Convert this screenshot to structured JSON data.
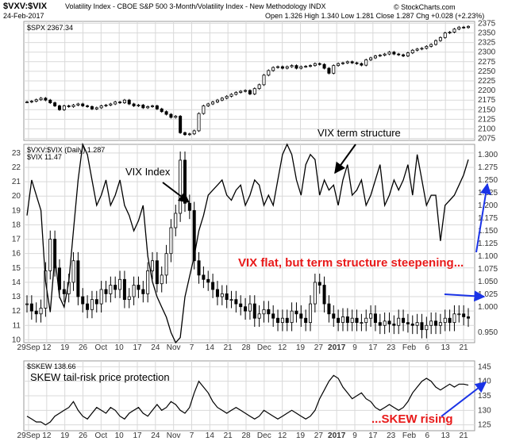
{
  "header": {
    "symbol": "$VXV:$VIX",
    "description": "Volatility Index - CBOE S&P 500 3-Month/Volatility Index - New Methodology  INDX",
    "date": "24-Feb-2017",
    "quote": "Open 1.326  High 1.340  Low 1.281  Close 1.287  Chg +0.028 (+2.23%)",
    "watermark": "© StockCharts.com"
  },
  "panels": {
    "spx": {
      "legend": "$SPX 2367.34"
    },
    "main": {
      "legend_ratio": "$VXV:$VIX (Daily) 1.287",
      "legend_vix": "$VIX 11.47"
    },
    "skew": {
      "legend": "$SKEW 138.66"
    }
  },
  "annotations": {
    "vix_index": "VIX Index",
    "term_structure": "VIX term structure",
    "flat_steepening": "VIX flat, but term structure steepening...",
    "skew_label": "SKEW tail-risk price protection",
    "skew_rising": "...SKEW rising"
  },
  "colors": {
    "annotation_red": "#e81a1a",
    "arrow_blue": "#1a33e6",
    "series": "#000000",
    "grid": "#d9d9d9"
  },
  "chart_data": [
    {
      "type": "candlestick",
      "series": [
        {
          "name": "$SPX",
          "values": [
            2170,
            2172,
            2176,
            2180,
            2175,
            2168,
            2160,
            2150,
            2160,
            2158,
            2162,
            2165,
            2160,
            2158,
            2152,
            2155,
            2160,
            2162,
            2165,
            2170,
            2168,
            2175,
            2165,
            2160,
            2162,
            2155,
            2158,
            2160,
            2152,
            2145,
            2138,
            2130,
            2133,
            2090,
            2085,
            2087,
            2095,
            2140,
            2160,
            2165,
            2170,
            2175,
            2180,
            2185,
            2190,
            2195,
            2198,
            2200,
            2191,
            2205,
            2215,
            2240,
            2252,
            2260,
            2262,
            2258,
            2262,
            2265,
            2258,
            2262,
            2263,
            2265,
            2270,
            2268,
            2258,
            2245,
            2265,
            2270,
            2272,
            2275,
            2272,
            2270,
            2266,
            2280,
            2285,
            2290,
            2292,
            2295,
            2300,
            2295,
            2293,
            2290,
            2298,
            2305,
            2308,
            2310,
            2315,
            2320,
            2330,
            2338,
            2350,
            2352,
            2360,
            2365,
            2364,
            2367
          ]
        }
      ],
      "y_ticks": [
        2075,
        2100,
        2125,
        2150,
        2175,
        2200,
        2225,
        2250,
        2275,
        2300,
        2325,
        2350,
        2375
      ],
      "ylim": [
        2070,
        2380
      ]
    },
    {
      "type": "line",
      "series": [
        {
          "name": "$VIX",
          "values": [
            12.5,
            12.0,
            11.8,
            12.2,
            14.8,
            17.0,
            15.0,
            13.5,
            13.2,
            14.0,
            15.5,
            13.0,
            12.5,
            12.1,
            12.8,
            12.5,
            13.5,
            13.2,
            13.8,
            13.5,
            14.2,
            12.8,
            13.0,
            13.8,
            13.5,
            13.2,
            14.8,
            15.5,
            13.9,
            14.5,
            16.0,
            17.8,
            18.8,
            22.5,
            19.5,
            19.0,
            15.5,
            14.5,
            14.2,
            14.0,
            13.5,
            13.0,
            13.2,
            12.8,
            12.8,
            12.5,
            12.3,
            12.0,
            12.5,
            11.5,
            11.8,
            12.1,
            11.8,
            11.5,
            11.2,
            11.5,
            11.2,
            12.0,
            11.8,
            11.5,
            11.2,
            12.5,
            14.0,
            13.8,
            12.5,
            11.8,
            11.5,
            11.2,
            11.6,
            11.2,
            11.5,
            11.2,
            11.2,
            11.5,
            11.8,
            11.2,
            11.0,
            11.3,
            11.1,
            11.0,
            11.5,
            11.2,
            11.1,
            11.0,
            11.2,
            10.7,
            11.0,
            11.3,
            11.0,
            11.2,
            11.5,
            11.2,
            11.8,
            11.8,
            11.6,
            11.5
          ]
        },
        {
          "name": "$VXV:$VIX (Daily)",
          "values": [
            1.18,
            1.25,
            1.22,
            1.19,
            1.05,
            0.99,
            1.1,
            1.02,
            1.0,
            1.05,
            1.15,
            1.25,
            1.32,
            1.3,
            1.25,
            1.2,
            1.22,
            1.25,
            1.2,
            1.22,
            1.25,
            1.2,
            1.18,
            1.15,
            1.17,
            1.2,
            1.1,
            1.05,
            1.02,
            1.0,
            0.98,
            0.95,
            0.93,
            0.94,
            1.02,
            1.06,
            1.1,
            1.15,
            1.18,
            1.22,
            1.23,
            1.24,
            1.25,
            1.22,
            1.21,
            1.23,
            1.24,
            1.2,
            1.22,
            1.25,
            1.24,
            1.2,
            1.22,
            1.2,
            1.25,
            1.3,
            1.32,
            1.3,
            1.25,
            1.22,
            1.28,
            1.3,
            1.29,
            1.22,
            1.25,
            1.23,
            1.24,
            1.2,
            1.25,
            1.28,
            1.22,
            1.23,
            1.25,
            1.2,
            1.22,
            1.25,
            1.28,
            1.2,
            1.22,
            1.25,
            1.23,
            1.25,
            1.28,
            1.22,
            1.3,
            1.25,
            1.2,
            1.22,
            1.22,
            1.13,
            1.2,
            1.21,
            1.22,
            1.24,
            1.26,
            1.29
          ]
        }
      ],
      "y_ticks_left": [
        10,
        11,
        12,
        13,
        14,
        15,
        16,
        17,
        18,
        19,
        20,
        21,
        22,
        23
      ],
      "y_ticks_right": [
        0.95,
        1.0,
        1.025,
        1.05,
        1.075,
        1.1,
        1.125,
        1.15,
        1.175,
        1.2,
        1.225,
        1.25,
        1.275,
        1.3
      ],
      "ylim_left": [
        9.8,
        23.6
      ],
      "ylim_right": [
        0.93,
        1.32
      ]
    },
    {
      "type": "line",
      "series": [
        {
          "name": "$SKEW",
          "values": [
            128,
            127,
            126,
            126,
            125,
            126,
            128,
            129,
            130,
            131,
            133,
            130,
            128,
            127,
            129,
            131,
            130,
            129,
            131,
            130,
            128,
            127,
            129,
            130,
            131,
            129,
            128,
            130,
            132,
            130,
            131,
            133,
            132,
            130,
            129,
            131,
            136,
            140,
            138,
            136,
            133,
            131,
            130,
            129,
            130,
            131,
            130,
            129,
            128,
            127,
            128,
            130,
            129,
            128,
            127,
            128,
            129,
            130,
            129,
            128,
            127,
            128,
            130,
            134,
            137,
            140,
            142,
            141,
            138,
            136,
            134,
            135,
            136,
            134,
            133,
            131,
            130,
            131,
            132,
            131,
            130,
            131,
            133,
            136,
            138,
            140,
            141,
            140,
            138,
            137,
            138,
            139,
            138,
            139,
            139,
            138.66
          ]
        }
      ],
      "y_ticks": [
        125,
        130,
        135,
        140,
        145
      ],
      "ylim": [
        123,
        147
      ]
    }
  ],
  "x_axis": {
    "labels": [
      "29Sep",
      "12",
      "19",
      "26",
      "Oct",
      "10",
      "17",
      "24",
      "Nov",
      "7",
      "14",
      "21",
      "28",
      "Dec",
      "12",
      "19",
      "27",
      "2017",
      "9",
      "17",
      "23",
      "Feb",
      "6",
      "13",
      "21"
    ]
  }
}
